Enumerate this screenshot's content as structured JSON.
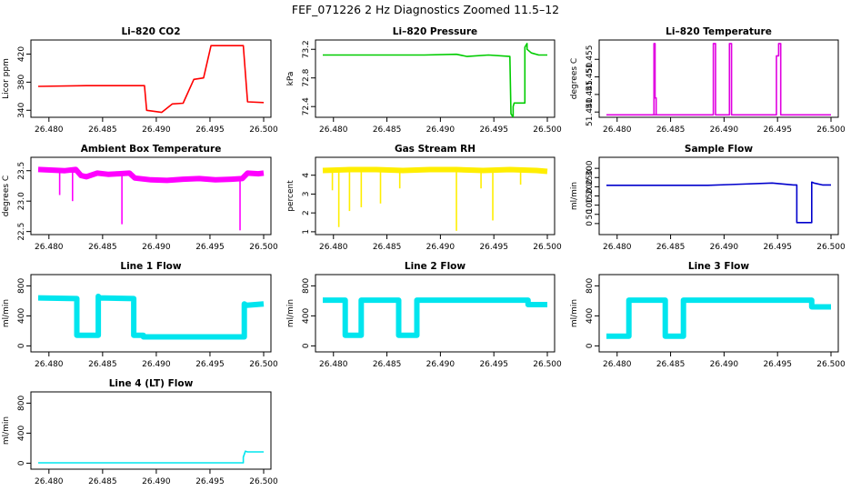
{
  "figure": {
    "title": "FEF_071226  2 Hz Diagnostics Zoomed 11.5–12"
  },
  "chart_data": [
    {
      "id": "li820-co2",
      "type": "line",
      "title": "Li–820 CO2",
      "ylabel": "Licor ppm",
      "color": "#ff0000",
      "xlim": [
        26.4788,
        26.5002
      ],
      "ylim": [
        330,
        440
      ],
      "xticks": [
        "26.480",
        "26.485",
        "26.490",
        "26.495",
        "26.500"
      ],
      "yticks": [
        "340",
        "380",
        "420"
      ],
      "series": [
        {
          "x": [
            26.479,
            26.4835,
            26.4835,
            26.4889,
            26.4889,
            26.4891,
            26.4891,
            26.4905,
            26.4905,
            26.4915,
            26.4915,
            26.4925,
            26.4925,
            26.4935,
            26.4935,
            26.4944,
            26.4944,
            26.4951,
            26.4951,
            26.4981,
            26.4981,
            26.4985,
            26.4985,
            26.5
          ],
          "y": [
            374,
            375,
            375,
            375,
            375,
            340,
            340,
            337,
            337,
            349,
            349,
            350,
            350,
            384,
            384,
            386,
            386,
            432,
            432,
            432,
            432,
            352,
            352,
            351
          ]
        }
      ]
    },
    {
      "id": "li820-pressure",
      "type": "line",
      "title": "Li–820 Pressure",
      "ylabel": "kPa",
      "color": "#00cc00",
      "xlim": [
        26.4788,
        26.5002
      ],
      "ylim": [
        72.25,
        73.33
      ],
      "xticks": [
        "26.480",
        "26.485",
        "26.490",
        "26.495",
        "26.500"
      ],
      "yticks": [
        "72.4",
        "72.8",
        "73.2"
      ],
      "series": [
        {
          "x": [
            26.479,
            26.4855,
            26.4885,
            26.4915,
            26.4925,
            26.4945,
            26.4965,
            26.4966,
            26.4968,
            26.4968,
            26.4969,
            26.4979,
            26.4979,
            26.4981,
            26.4981,
            26.4985,
            26.4992,
            26.5
          ],
          "y": [
            73.12,
            73.12,
            73.12,
            73.13,
            73.1,
            73.12,
            73.1,
            72.3,
            72.25,
            72.4,
            72.45,
            72.45,
            73.23,
            73.28,
            73.2,
            73.15,
            73.12,
            73.12
          ]
        }
      ]
    },
    {
      "id": "li820-temperature",
      "type": "line",
      "title": "Li–820 Temperature",
      "ylabel": "degrees C",
      "color": "#e000e0",
      "xlim": [
        26.4788,
        26.5002
      ],
      "ylim": [
        51.4385,
        51.4605
      ],
      "xticks": [
        "26.480",
        "26.485",
        "26.490",
        "26.495",
        "26.500"
      ],
      "yticks": [
        "51.440",
        "51.445",
        "51.450",
        "51.455"
      ],
      "series": [
        {
          "x": [
            26.479,
            26.48345,
            26.48345,
            26.48355,
            26.48355,
            26.48365,
            26.48365,
            26.4835,
            26.489,
            26.489,
            26.4892,
            26.4892,
            26.4893,
            26.4905,
            26.4905,
            26.4907,
            26.4907,
            26.4908,
            26.4949,
            26.4949,
            26.4951,
            26.4951,
            26.4953,
            26.4953,
            26.4954,
            26.5
          ],
          "y": [
            51.4392,
            51.4392,
            51.4595,
            51.4595,
            51.444,
            51.444,
            51.4392,
            51.4392,
            51.4392,
            51.4595,
            51.4595,
            51.4392,
            51.4392,
            51.4392,
            51.4595,
            51.4595,
            51.4392,
            51.4392,
            51.4392,
            51.456,
            51.456,
            51.4595,
            51.4595,
            51.4392,
            51.4392,
            51.4392
          ]
        }
      ]
    },
    {
      "id": "ambient-box-temperature",
      "type": "line",
      "title": "Ambient Box Temperature",
      "ylabel": "degrees C",
      "color": "#ff00ff",
      "band": true,
      "xlim": [
        26.4788,
        26.5002
      ],
      "ylim": [
        22.45,
        23.72
      ],
      "xticks": [
        "26.480",
        "26.485",
        "26.490",
        "26.495",
        "26.500"
      ],
      "yticks": [
        "22.5",
        "23.0",
        "23.5"
      ],
      "series": [
        {
          "x": [
            26.479,
            26.4815,
            26.4825,
            26.483,
            26.4835,
            26.4845,
            26.4855,
            26.4865,
            26.4875,
            26.488,
            26.4895,
            26.491,
            26.4925,
            26.494,
            26.4955,
            26.497,
            26.498,
            26.4985,
            26.4995,
            26.5
          ],
          "y": [
            23.52,
            23.5,
            23.52,
            23.42,
            23.4,
            23.46,
            23.44,
            23.45,
            23.46,
            23.38,
            23.35,
            23.34,
            23.36,
            23.37,
            23.35,
            23.36,
            23.37,
            23.46,
            23.45,
            23.46
          ]
        }
      ],
      "spikes": [
        {
          "x": 26.4822,
          "y": 23.0
        },
        {
          "x": 26.4868,
          "y": 22.62
        },
        {
          "x": 26.4978,
          "y": 22.52
        },
        {
          "x": 26.481,
          "y": 23.1
        }
      ]
    },
    {
      "id": "gas-stream-rh",
      "type": "line",
      "title": "Gas Stream RH",
      "ylabel": "percent",
      "color": "#ffee00",
      "band": true,
      "xlim": [
        26.4788,
        26.5002
      ],
      "ylim": [
        0.85,
        4.95
      ],
      "xticks": [
        "26.480",
        "26.485",
        "26.490",
        "26.495",
        "26.500"
      ],
      "yticks": [
        "1",
        "2",
        "3",
        "4"
      ],
      "series": [
        {
          "x": [
            26.479,
            26.4815,
            26.484,
            26.4865,
            26.489,
            26.4915,
            26.494,
            26.4965,
            26.499,
            26.5
          ],
          "y": [
            4.25,
            4.3,
            4.3,
            4.25,
            4.3,
            4.3,
            4.25,
            4.3,
            4.25,
            4.2
          ]
        }
      ],
      "spikes": [
        {
          "x": 26.4799,
          "y": 3.2
        },
        {
          "x": 26.4805,
          "y": 1.25
        },
        {
          "x": 26.4815,
          "y": 2.1
        },
        {
          "x": 26.4826,
          "y": 2.3
        },
        {
          "x": 26.4844,
          "y": 2.5
        },
        {
          "x": 26.4862,
          "y": 3.3
        },
        {
          "x": 26.4915,
          "y": 1.05
        },
        {
          "x": 26.4938,
          "y": 3.3
        },
        {
          "x": 26.4949,
          "y": 1.6
        },
        {
          "x": 26.4975,
          "y": 3.5
        }
      ]
    },
    {
      "id": "sample-flow",
      "type": "line",
      "title": "Sample Flow",
      "ylabel": "ml/min",
      "color": "#0000cc",
      "xlim": [
        26.4788,
        26.5002
      ],
      "ylim": [
        -60,
        360
      ],
      "xticks": [
        "26.480",
        "26.485",
        "26.490",
        "26.495",
        "26.500"
      ],
      "yticks": [
        "0",
        "50",
        "100",
        "150",
        "200",
        "250",
        "300"
      ],
      "series": [
        {
          "x": [
            26.479,
            26.4885,
            26.4905,
            26.4945,
            26.4965,
            26.4968,
            26.4968,
            26.4982,
            26.4982,
            26.4984,
            26.4992,
            26.5
          ],
          "y": [
            208,
            208,
            212,
            220,
            210,
            210,
            5,
            5,
            225,
            220,
            210,
            210
          ]
        }
      ]
    },
    {
      "id": "line-1-flow",
      "type": "line",
      "title": "Line 1 Flow",
      "ylabel": "ml/min",
      "color": "#00e5ee",
      "band": true,
      "xlim": [
        26.4788,
        26.5002
      ],
      "ylim": [
        -80,
        950
      ],
      "xticks": [
        "26.480",
        "26.485",
        "26.490",
        "26.495",
        "26.500"
      ],
      "yticks": [
        "0",
        "400",
        "800"
      ],
      "series": [
        {
          "x": [
            26.479,
            26.4826,
            26.4826,
            26.4846,
            26.4846,
            26.4847,
            26.4879,
            26.4879,
            26.4888,
            26.4888,
            26.4982,
            26.4982,
            26.4984,
            26.5
          ],
          "y": [
            640,
            630,
            140,
            140,
            660,
            640,
            630,
            140,
            140,
            120,
            120,
            560,
            540,
            560
          ]
        }
      ]
    },
    {
      "id": "line-2-flow",
      "type": "line",
      "title": "Line 2 Flow",
      "ylabel": "ml/min",
      "color": "#00e5ee",
      "band": true,
      "xlim": [
        26.4788,
        26.5002
      ],
      "ylim": [
        -80,
        950
      ],
      "xticks": [
        "26.480",
        "26.485",
        "26.490",
        "26.495",
        "26.500"
      ],
      "yticks": [
        "0",
        "400",
        "800"
      ],
      "series": [
        {
          "x": [
            26.479,
            26.4811,
            26.4811,
            26.4826,
            26.4826,
            26.4861,
            26.4861,
            26.4878,
            26.4878,
            26.4982,
            26.4982,
            26.5
          ],
          "y": [
            610,
            610,
            140,
            140,
            610,
            610,
            140,
            140,
            610,
            610,
            550,
            550
          ]
        }
      ]
    },
    {
      "id": "line-3-flow",
      "type": "line",
      "title": "Line 3 Flow",
      "ylabel": "ml/min",
      "color": "#00e5ee",
      "band": true,
      "xlim": [
        26.4788,
        26.5002
      ],
      "ylim": [
        -80,
        950
      ],
      "xticks": [
        "26.480",
        "26.485",
        "26.490",
        "26.495",
        "26.500"
      ],
      "yticks": [
        "0",
        "400",
        "800"
      ],
      "series": [
        {
          "x": [
            26.479,
            26.4811,
            26.4811,
            26.4845,
            26.4845,
            26.4862,
            26.4862,
            26.4982,
            26.4982,
            26.5
          ],
          "y": [
            130,
            130,
            610,
            610,
            130,
            130,
            610,
            610,
            520,
            520
          ]
        }
      ]
    },
    {
      "id": "line-4-flow",
      "type": "line",
      "title": "Line 4 (LT) Flow",
      "ylabel": "ml/min",
      "color": "#00e5ee",
      "xlim": [
        26.4788,
        26.5002
      ],
      "ylim": [
        -80,
        950
      ],
      "xticks": [
        "26.480",
        "26.485",
        "26.490",
        "26.495",
        "26.500"
      ],
      "yticks": [
        "0",
        "400",
        "800"
      ],
      "series": [
        {
          "x": [
            26.479,
            26.4981,
            26.4981,
            26.4983,
            26.4985,
            26.5
          ],
          "y": [
            5,
            5,
            80,
            160,
            150,
            150
          ]
        }
      ]
    }
  ]
}
